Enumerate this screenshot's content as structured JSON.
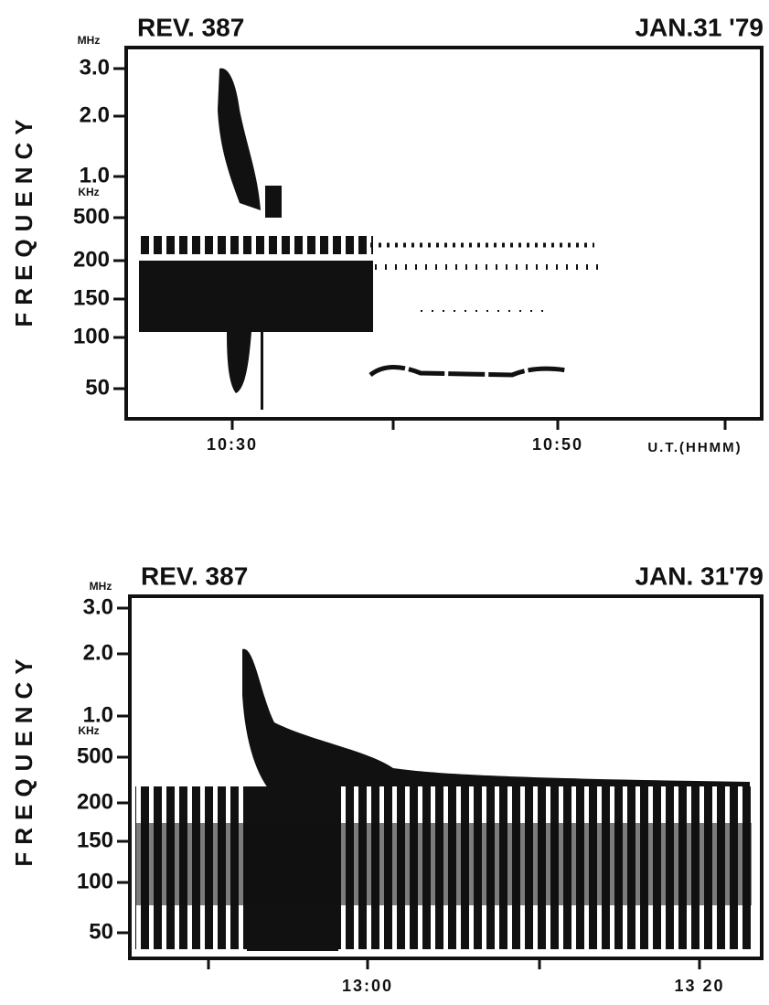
{
  "chart_data": [
    {
      "type": "spectrogram",
      "title": "REV. 387",
      "subtitle": "JAN.31 '79",
      "ylabel": "FREQUENCY",
      "y_unit_high": "MHz",
      "y_unit_low": "KHz",
      "yticks": [
        "3.0",
        "2.0",
        "1.0",
        "500",
        "200",
        "150",
        "100",
        "50"
      ],
      "xticks": [
        "10:30",
        null,
        "10:50",
        null
      ],
      "xlabel": "U.T.(HHMM)"
    },
    {
      "type": "spectrogram",
      "title": "REV. 387",
      "subtitle": "JAN. 31'79",
      "ylabel": "FREQUENCY",
      "y_unit_high": "MHz",
      "y_unit_low": "KHz",
      "yticks": [
        "3.0",
        "2.0",
        "1.0",
        "500",
        "200",
        "150",
        "100",
        "50"
      ],
      "xticks": [
        null,
        "13:00",
        null,
        "13 20"
      ]
    }
  ]
}
